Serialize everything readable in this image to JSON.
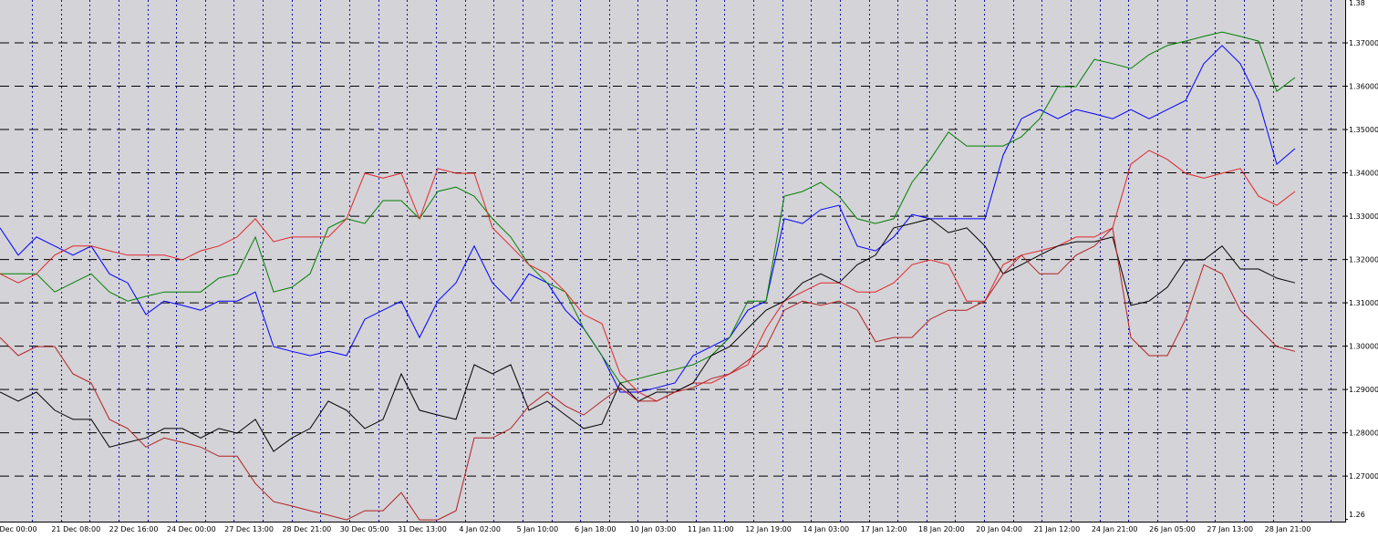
{
  "chart_data": {
    "type": "line",
    "x_tick_labels": [
      "Dec 00:00",
      "21 Dec 08:00",
      "22 Dec 16:00",
      "24 Dec 00:00",
      "27 Dec 13:00",
      "28 Dec 21:00",
      "30 Dec 05:00",
      "31 Dec 13:00",
      "4 Jan 02:00",
      "5 Jan 10:00",
      "6 Jan 18:00",
      "10 Jan 03:00",
      "11 Jan 11:00",
      "12 Jan 19:00",
      "14 Jan 03:00",
      "17 Jan 12:00",
      "18 Jan 20:00",
      "20 Jan 04:00",
      "21 Jan 12:00",
      "24 Jan 21:00",
      "26 Jan 05:00",
      "27 Jan 13:00",
      "28 Jan 21:00"
    ],
    "ylim": [
      1.2595,
      1.3799
    ],
    "yticks": [
      1.38,
      {
        "value": 1.37,
        "label": "1.37000"
      },
      {
        "value": 1.36,
        "label": "1.36000"
      },
      {
        "value": 1.35,
        "label": "1.35000"
      },
      {
        "value": 1.34,
        "label": "1.34000"
      },
      {
        "value": 1.33,
        "label": "1.33000"
      },
      {
        "value": 1.32,
        "label": "1.32000"
      },
      {
        "value": 1.31,
        "label": "1.31000"
      },
      {
        "value": 1.3,
        "label": "1.30000"
      },
      {
        "value": 1.29,
        "label": "1.29000"
      },
      {
        "value": 1.28,
        "label": "1.28000"
      },
      {
        "value": 1.27,
        "label": "1.27000"
      },
      1.26
    ],
    "grid": true,
    "series": [
      {
        "color": "#0000ff",
        "values": [
          1.3273,
          1.321,
          1.3252,
          1.3231,
          1.321,
          1.3231,
          1.3167,
          1.3146,
          1.3073,
          1.3104,
          1.3094,
          1.3083,
          1.3104,
          1.3104,
          1.3125,
          1.2999,
          1.2988,
          1.2978,
          1.2988,
          1.2978,
          1.3062,
          1.3083,
          1.3104,
          1.302,
          1.3104,
          1.3146,
          1.3231,
          1.3146,
          1.3104,
          1.3167,
          1.3146,
          1.3083,
          1.3041,
          1.2978,
          1.2894,
          1.2894,
          1.2904,
          1.2915,
          1.2978,
          1.2999,
          1.302,
          1.3083,
          1.3104,
          1.3294,
          1.3283,
          1.3315,
          1.3325,
          1.3231,
          1.322,
          1.3252,
          1.3304,
          1.3294,
          1.3294,
          1.3294,
          1.3294,
          1.3441,
          1.3525,
          1.3546,
          1.3525,
          1.3546,
          1.3536,
          1.3525,
          1.3546,
          1.3525,
          1.3546,
          1.3567,
          1.3652,
          1.3694,
          1.3652,
          1.3567,
          1.342,
          1.3456
        ]
      },
      {
        "color": "#008000",
        "values": [
          1.3167,
          1.3167,
          1.3167,
          1.3125,
          1.3146,
          1.3167,
          1.3125,
          1.3104,
          1.3115,
          1.3125,
          1.3125,
          1.3125,
          1.3157,
          1.3167,
          1.3252,
          1.3125,
          1.3136,
          1.3167,
          1.3273,
          1.3294,
          1.3283,
          1.3336,
          1.3336,
          1.3294,
          1.3357,
          1.3367,
          1.3346,
          1.3294,
          1.3252,
          1.3188,
          1.3146,
          1.3125,
          1.3041,
          1.2978,
          1.2915,
          1.2925,
          1.2936,
          1.2946,
          1.2957,
          1.2978,
          1.302,
          1.3104,
          1.3104,
          1.3346,
          1.3357,
          1.3378,
          1.3346,
          1.3294,
          1.3283,
          1.3294,
          1.3378,
          1.3431,
          1.3494,
          1.3462,
          1.3462,
          1.3462,
          1.3483,
          1.3525,
          1.3599,
          1.3599,
          1.3662,
          1.3652,
          1.3641,
          1.3673,
          1.3694,
          1.3704,
          1.3715,
          1.3725,
          1.3715,
          1.3704,
          1.3588,
          1.362
        ]
      },
      {
        "color": "#e02828",
        "values": [
          1.3167,
          1.3146,
          1.3167,
          1.321,
          1.3231,
          1.3231,
          1.322,
          1.321,
          1.321,
          1.321,
          1.3199,
          1.322,
          1.3231,
          1.3252,
          1.3294,
          1.3241,
          1.3252,
          1.3252,
          1.3252,
          1.3294,
          1.3399,
          1.3388,
          1.3399,
          1.3294,
          1.341,
          1.3399,
          1.3399,
          1.3273,
          1.3231,
          1.3188,
          1.3167,
          1.3125,
          1.3073,
          1.3052,
          1.2936,
          1.2894,
          1.2873,
          1.2894,
          1.2915,
          1.2915,
          1.2936,
          1.2957,
          1.3041,
          1.3104,
          1.3125,
          1.3146,
          1.3146,
          1.3125,
          1.3125,
          1.3146,
          1.3188,
          1.3199,
          1.3188,
          1.3104,
          1.3104,
          1.3188,
          1.321,
          1.322,
          1.3231,
          1.3252,
          1.3252,
          1.3273,
          1.342,
          1.3452,
          1.3431,
          1.3399,
          1.3388,
          1.3399,
          1.341,
          1.3346,
          1.3325,
          1.3357
        ]
      },
      {
        "color": "#000000",
        "values": [
          1.2894,
          1.2873,
          1.2894,
          1.2852,
          1.2831,
          1.2831,
          1.2767,
          1.2778,
          1.2788,
          1.281,
          1.281,
          1.2788,
          1.281,
          1.2799,
          1.2831,
          1.2757,
          1.2788,
          1.281,
          1.2873,
          1.2852,
          1.281,
          1.2831,
          1.2936,
          1.2852,
          1.2841,
          1.2831,
          1.2957,
          1.2936,
          1.2957,
          1.2852,
          1.2873,
          1.2841,
          1.281,
          1.282,
          1.2915,
          1.2873,
          1.2894,
          1.2894,
          1.2915,
          1.2978,
          1.2999,
          1.3041,
          1.3083,
          1.3104,
          1.3146,
          1.3167,
          1.3146,
          1.3188,
          1.321,
          1.3273,
          1.3283,
          1.3294,
          1.3262,
          1.3273,
          1.3231,
          1.3167,
          1.3188,
          1.321,
          1.3231,
          1.3241,
          1.3241,
          1.3252,
          1.3094,
          1.3104,
          1.3136,
          1.3199,
          1.3199,
          1.3231,
          1.3178,
          1.3178,
          1.3157,
          1.3146
        ]
      },
      {
        "color": "#b22222",
        "values": [
          1.302,
          1.2978,
          1.2999,
          1.2999,
          1.2936,
          1.2915,
          1.2831,
          1.281,
          1.2767,
          1.2788,
          1.2778,
          1.2767,
          1.2746,
          1.2746,
          1.2683,
          1.2641,
          1.2631,
          1.262,
          1.261,
          1.2599,
          1.262,
          1.262,
          1.2662,
          1.2599,
          1.2599,
          1.262,
          1.2788,
          1.2788,
          1.281,
          1.2862,
          1.2894,
          1.2862,
          1.2841,
          1.2873,
          1.2904,
          1.2873,
          1.2873,
          1.2894,
          1.2904,
          1.2925,
          1.2936,
          1.2967,
          1.2999,
          1.3083,
          1.3104,
          1.3094,
          1.3104,
          1.3083,
          1.301,
          1.302,
          1.302,
          1.3062,
          1.3083,
          1.3083,
          1.3104,
          1.3167,
          1.321,
          1.3167,
          1.3167,
          1.321,
          1.3231,
          1.3273,
          1.302,
          1.2978,
          1.2978,
          1.3062,
          1.3188,
          1.3167,
          1.3083,
          1.3041,
          1.2999,
          1.2988
        ]
      }
    ]
  }
}
